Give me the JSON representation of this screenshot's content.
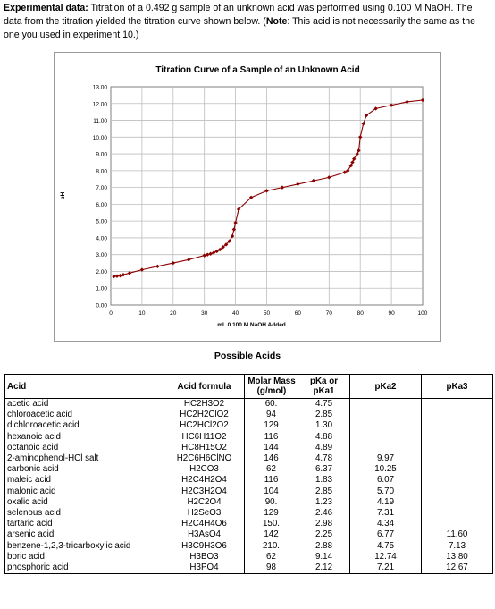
{
  "intro": {
    "heading": "Experimental data:",
    "text": " Titration of a 0.492 g sample of an unknown acid was performed using 0.100 M NaOH.  The data from the titration yielded the titration curve shown below.  (",
    "note_label": "Note",
    "note_text": ":  This acid is not necessarily the same as the one you used in experiment 10.)"
  },
  "chart_data": {
    "type": "line",
    "title": "Titration Curve of a Sample of an Unknown Acid",
    "xlabel": "mL 0.100 M NaOH Added",
    "ylabel": "pH",
    "xlim": [
      0,
      100
    ],
    "ylim": [
      0,
      13
    ],
    "x_ticks": [
      "0",
      "10",
      "20",
      "30",
      "40",
      "50",
      "60",
      "70",
      "80",
      "90",
      "100"
    ],
    "y_ticks": [
      "0.00",
      "1.00",
      "2.00",
      "3.00",
      "4.00",
      "5.00",
      "6.00",
      "7.00",
      "8.00",
      "9.00",
      "10.00",
      "11.00",
      "12.00",
      "13.00"
    ],
    "grid": true,
    "series": [
      {
        "color": "#8b0000",
        "x": [
          1,
          2,
          3,
          4,
          6,
          10,
          15,
          20,
          25,
          30,
          31,
          32,
          33,
          34,
          35,
          36,
          37,
          38,
          39,
          39.5,
          40,
          41,
          45,
          50,
          55,
          60,
          65,
          70,
          75,
          76,
          77,
          77.5,
          78,
          79,
          79.5,
          80,
          81,
          82,
          85,
          90,
          95,
          100
        ],
        "y": [
          1.7,
          1.72,
          1.75,
          1.8,
          1.9,
          2.1,
          2.3,
          2.5,
          2.7,
          2.95,
          3.0,
          3.05,
          3.12,
          3.2,
          3.3,
          3.45,
          3.6,
          3.8,
          4.1,
          4.5,
          4.9,
          5.7,
          6.4,
          6.8,
          7.0,
          7.2,
          7.4,
          7.6,
          7.9,
          8.0,
          8.3,
          8.5,
          8.7,
          9.0,
          9.2,
          10.0,
          10.8,
          11.3,
          11.7,
          11.9,
          12.1,
          12.2
        ]
      }
    ]
  },
  "possible_title": "Possible Acids",
  "table": {
    "headers": {
      "acid": "Acid",
      "formula": "Acid formula",
      "molar": "Molar Mass (g/mol)",
      "pka1": "pKa or pKa1",
      "pka2": "pKa2",
      "pka3": "pKa3"
    },
    "rows": [
      {
        "acid": "acetic acid",
        "formula": "HC2H3O2",
        "molar": "60.",
        "pka1": "4.75",
        "pka2": "",
        "pka3": ""
      },
      {
        "acid": "chloroacetic acid",
        "formula": "HC2H2ClO2",
        "molar": "94",
        "pka1": "2.85",
        "pka2": "",
        "pka3": ""
      },
      {
        "acid": "dichloroacetic acid",
        "formula": "HC2HCl2O2",
        "molar": "129",
        "pka1": "1.30",
        "pka2": "",
        "pka3": ""
      },
      {
        "acid": "hexanoic acid",
        "formula": "HC6H11O2",
        "molar": "116",
        "pka1": "4.88",
        "pka2": "",
        "pka3": ""
      },
      {
        "acid": "octanoic acid",
        "formula": "HC8H15O2",
        "molar": "144",
        "pka1": "4.89",
        "pka2": "",
        "pka3": ""
      },
      {
        "acid": "2-aminophenol-HCl salt",
        "formula": "H2C6H6ClNO",
        "molar": "146",
        "pka1": "4.78",
        "pka2": "9.97",
        "pka3": ""
      },
      {
        "acid": "carbonic acid",
        "formula": "H2CO3",
        "molar": "62",
        "pka1": "6.37",
        "pka2": "10.25",
        "pka3": ""
      },
      {
        "acid": "maleic acid",
        "formula": "H2C4H2O4",
        "molar": "116",
        "pka1": "1.83",
        "pka2": "6.07",
        "pka3": ""
      },
      {
        "acid": "malonic acid",
        "formula": "H2C3H2O4",
        "molar": "104",
        "pka1": "2.85",
        "pka2": "5.70",
        "pka3": ""
      },
      {
        "acid": "oxalic acid",
        "formula": "H2C2O4",
        "molar": "90.",
        "pka1": "1.23",
        "pka2": "4.19",
        "pka3": ""
      },
      {
        "acid": "selenous acid",
        "formula": "H2SeO3",
        "molar": "129",
        "pka1": "2.46",
        "pka2": "7.31",
        "pka3": ""
      },
      {
        "acid": "tartaric acid",
        "formula": "H2C4H4O6",
        "molar": "150.",
        "pka1": "2.98",
        "pka2": "4.34",
        "pka3": ""
      },
      {
        "acid": "arsenic acid",
        "formula": "H3AsO4",
        "molar": "142",
        "pka1": "2.25",
        "pka2": "6.77",
        "pka3": "11.60"
      },
      {
        "acid": "benzene-1,2,3-tricarboxylic acid",
        "formula": "H3C9H3O6",
        "molar": "210.",
        "pka1": "2.88",
        "pka2": "4.75",
        "pka3": "7.13"
      },
      {
        "acid": "boric acid",
        "formula": "H3BO3",
        "molar": "62",
        "pka1": "9.14",
        "pka2": "12.74",
        "pka3": "13.80"
      },
      {
        "acid": "phosphoric acid",
        "formula": "H3PO4",
        "molar": "98",
        "pka1": "2.12",
        "pka2": "7.21",
        "pka3": "12.67"
      }
    ]
  }
}
